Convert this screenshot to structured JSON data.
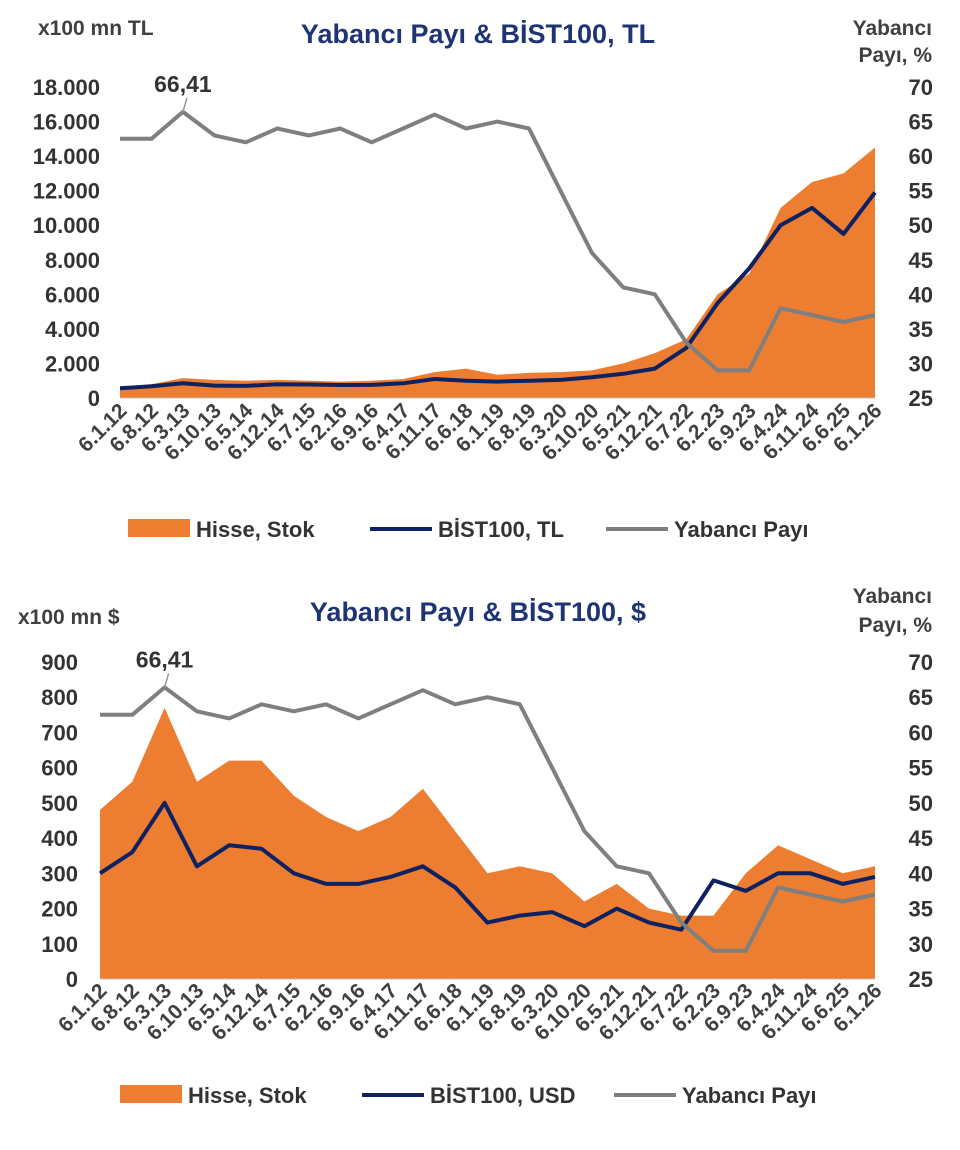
{
  "chart_data": [
    {
      "type": "area",
      "title": "Yabancı Payı & BİST100,  TL",
      "left_axis_label": "x100 mn TL",
      "right_axis_label": [
        "Yabancı",
        "Payı, %"
      ],
      "left_ticks": [
        "0",
        "2.000",
        "4.000",
        "6.000",
        "8.000",
        "10.000",
        "12.000",
        "14.000",
        "16.000",
        "18.000"
      ],
      "left_range": [
        0,
        18000
      ],
      "right_ticks": [
        "25",
        "30",
        "35",
        "40",
        "45",
        "50",
        "55",
        "60",
        "65",
        "70"
      ],
      "right_range": [
        25,
        70
      ],
      "x_labels": [
        "6.1.12",
        "6.8.12",
        "6.3.13",
        "6.10.13",
        "6.5.14",
        "6.12.14",
        "6.7.15",
        "6.2.16",
        "6.9.16",
        "6.4.17",
        "6.11.17",
        "6.6.18",
        "6.1.19",
        "6.8.19",
        "6.3.20",
        "6.10.20",
        "6.5.21",
        "6.12.21",
        "6.7.22",
        "6.2.23",
        "6.9.23",
        "6.4.24",
        "6.11.24",
        "6.6.25",
        "6.1.26"
      ],
      "peak_label": "66,41",
      "peak_index": 2,
      "legend": [
        "Hisse, Stok",
        "BİST100, TL",
        "Yabancı Payı"
      ],
      "series": [
        {
          "name": "Hisse, Stok",
          "type": "area",
          "color": "#ed7d31",
          "axis": "left",
          "values": [
            600,
            800,
            1150,
            1050,
            1000,
            1050,
            1000,
            950,
            1000,
            1100,
            1500,
            1700,
            1350,
            1450,
            1500,
            1600,
            2000,
            2600,
            3400,
            6000,
            7200,
            11000,
            12500,
            13000,
            14500
          ]
        },
        {
          "name": "BİST100, TL",
          "type": "line",
          "color": "#0e2160",
          "axis": "left",
          "values": [
            560,
            680,
            850,
            720,
            700,
            800,
            780,
            750,
            760,
            850,
            1100,
            1000,
            950,
            1000,
            1050,
            1200,
            1400,
            1700,
            2900,
            5500,
            7500,
            10000,
            11000,
            9500,
            11900
          ]
        },
        {
          "name": "Yabancı Payı",
          "type": "line",
          "color": "#7f7f7f",
          "axis": "right",
          "values": [
            62.5,
            62.5,
            66.4,
            63,
            62,
            64,
            63,
            64,
            62,
            64,
            66,
            64,
            65,
            64,
            55,
            46,
            41,
            40,
            33,
            29,
            29,
            38,
            37,
            36,
            37
          ]
        }
      ]
    },
    {
      "type": "area",
      "title": "Yabancı Payı & BİST100,  $",
      "left_axis_label": "x100 mn $",
      "right_axis_label": [
        "Yabancı",
        "Payı, %"
      ],
      "left_ticks": [
        "0",
        "100",
        "200",
        "300",
        "400",
        "500",
        "600",
        "700",
        "800",
        "900"
      ],
      "left_range": [
        0,
        900
      ],
      "right_ticks": [
        "25",
        "30",
        "35",
        "40",
        "45",
        "50",
        "55",
        "60",
        "65",
        "70"
      ],
      "right_range": [
        25,
        70
      ],
      "x_labels": [
        "6.1.12",
        "6.8.12",
        "6.3.13",
        "6.10.13",
        "6.5.14",
        "6.12.14",
        "6.7.15",
        "6.2.16",
        "6.9.16",
        "6.4.17",
        "6.11.17",
        "6.6.18",
        "6.1.19",
        "6.8.19",
        "6.3.20",
        "6.10.20",
        "6.5.21",
        "6.12.21",
        "6.7.22",
        "6.2.23",
        "6.9.23",
        "6.4.24",
        "6.11.24",
        "6.6.25",
        "6.1.26"
      ],
      "peak_label": "66,41",
      "peak_index": 2,
      "legend": [
        "Hisse, Stok",
        "BİST100, USD",
        "Yabancı Payı"
      ],
      "series": [
        {
          "name": "Hisse, Stok",
          "type": "area",
          "color": "#ed7d31",
          "axis": "left",
          "values": [
            480,
            560,
            770,
            560,
            620,
            620,
            520,
            460,
            420,
            460,
            540,
            420,
            300,
            320,
            300,
            220,
            270,
            200,
            180,
            180,
            300,
            380,
            340,
            300,
            320
          ]
        },
        {
          "name": "BİST100, USD",
          "type": "line",
          "color": "#0e2160",
          "axis": "left",
          "values": [
            300,
            360,
            500,
            320,
            380,
            370,
            300,
            270,
            270,
            290,
            320,
            260,
            160,
            180,
            190,
            150,
            200,
            160,
            140,
            280,
            250,
            300,
            300,
            270,
            290
          ]
        },
        {
          "name": "Yabancı Payı",
          "type": "line",
          "color": "#7f7f7f",
          "axis": "right",
          "values": [
            62.5,
            62.5,
            66.4,
            63,
            62,
            64,
            63,
            64,
            62,
            64,
            66,
            64,
            65,
            64,
            55,
            46,
            41,
            40,
            33,
            29,
            29,
            38,
            37,
            36,
            37
          ]
        }
      ]
    }
  ]
}
